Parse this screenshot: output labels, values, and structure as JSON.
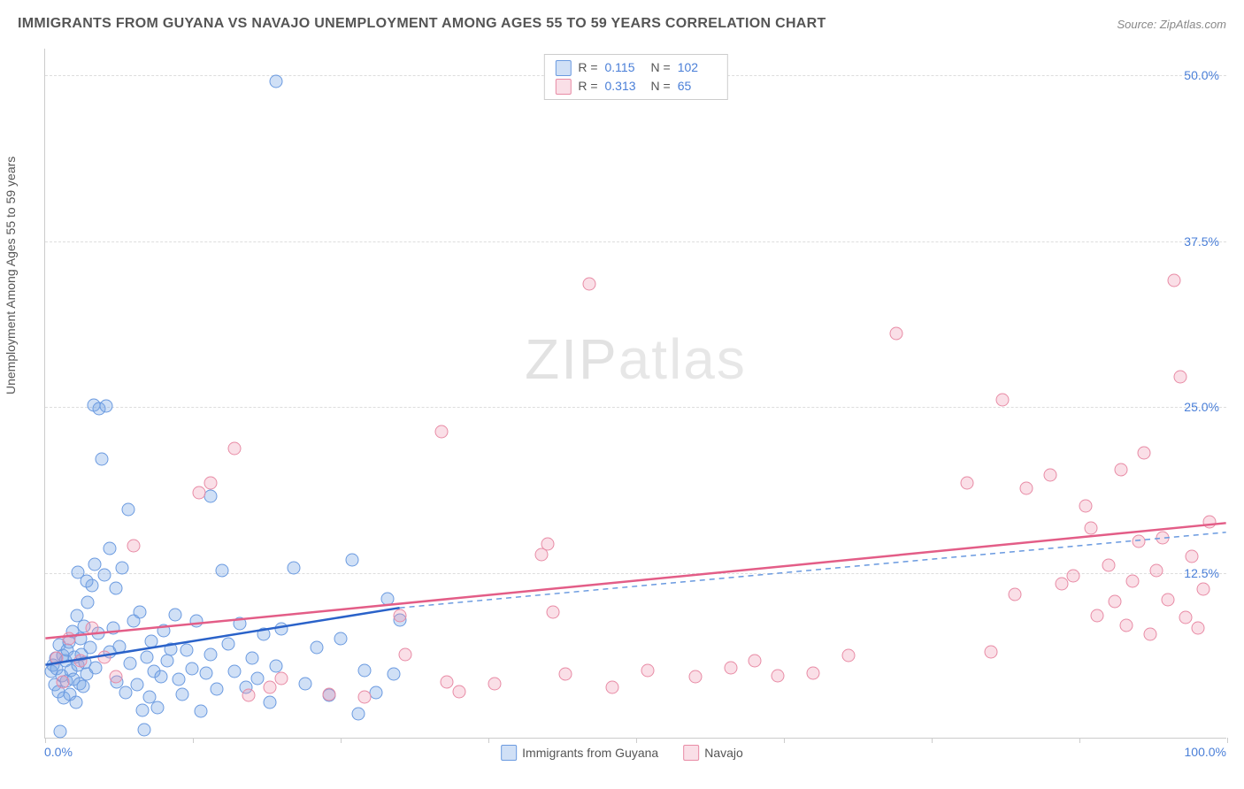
{
  "title": "IMMIGRANTS FROM GUYANA VS NAVAJO UNEMPLOYMENT AMONG AGES 55 TO 59 YEARS CORRELATION CHART",
  "source": "Source: ZipAtlas.com",
  "ylabel": "Unemployment Among Ages 55 to 59 years",
  "watermark_a": "ZIP",
  "watermark_b": "atlas",
  "chart": {
    "type": "scatter",
    "xlim": [
      0,
      100
    ],
    "ylim": [
      0,
      52
    ],
    "x_ticks": [
      0,
      12.5,
      25,
      37.5,
      50,
      62.5,
      75,
      87.5,
      100
    ],
    "y_ticks": [
      12.5,
      25.0,
      37.5,
      50.0
    ],
    "y_tick_labels": [
      "12.5%",
      "25.0%",
      "37.5%",
      "50.0%"
    ],
    "x_axis_min_label": "0.0%",
    "x_axis_max_label": "100.0%",
    "grid_color": "#dddddd",
    "axis_color": "#cccccc",
    "background_color": "#ffffff",
    "label_color": "#4a7fd8"
  },
  "series": [
    {
      "name": "Immigrants from Guyana",
      "color_fill": "rgba(120,165,230,0.35)",
      "color_stroke": "#6a9ae0",
      "line_color": "#2a62c9",
      "dash_color": "#6a9ae0",
      "R": "0.115",
      "N": "102",
      "trend": {
        "x1": 0,
        "y1": 5.5,
        "x2": 30,
        "y2": 9.8,
        "dash_x2": 100,
        "dash_y2": 15.5
      },
      "points": [
        [
          0.5,
          5
        ],
        [
          0.7,
          5.5
        ],
        [
          0.8,
          4
        ],
        [
          0.9,
          6
        ],
        [
          1,
          5.2
        ],
        [
          1.1,
          3.5
        ],
        [
          1.2,
          7
        ],
        [
          1.3,
          0.5
        ],
        [
          1.4,
          4.7
        ],
        [
          1.5,
          6.2
        ],
        [
          1.6,
          3
        ],
        [
          1.7,
          5.8
        ],
        [
          1.8,
          4.3
        ],
        [
          1.9,
          6.6
        ],
        [
          2,
          7.2
        ],
        [
          2.1,
          3.3
        ],
        [
          2.2,
          5.1
        ],
        [
          2.3,
          8
        ],
        [
          2.4,
          4.4
        ],
        [
          2.5,
          6.1
        ],
        [
          2.6,
          2.7
        ],
        [
          2.7,
          9.2
        ],
        [
          2.8,
          5.5
        ],
        [
          2.9,
          4.1
        ],
        [
          3,
          7.5
        ],
        [
          3.1,
          6.3
        ],
        [
          3.2,
          3.9
        ],
        [
          3.3,
          8.4
        ],
        [
          3.4,
          5.7
        ],
        [
          3.5,
          4.8
        ],
        [
          3.6,
          10.2
        ],
        [
          3.8,
          6.8
        ],
        [
          4,
          11.5
        ],
        [
          4.1,
          25.1
        ],
        [
          4.3,
          5.3
        ],
        [
          4.5,
          7.9
        ],
        [
          4.6,
          24.8
        ],
        [
          4.8,
          21
        ],
        [
          5,
          12.3
        ],
        [
          5.2,
          25
        ],
        [
          5.5,
          6.5
        ],
        [
          5.8,
          8.3
        ],
        [
          6,
          11.3
        ],
        [
          6.1,
          4.2
        ],
        [
          6.3,
          6.9
        ],
        [
          6.5,
          12.8
        ],
        [
          6.8,
          3.4
        ],
        [
          7,
          17.2
        ],
        [
          7.2,
          5.6
        ],
        [
          7.5,
          8.8
        ],
        [
          7.8,
          4
        ],
        [
          8,
          9.5
        ],
        [
          8.2,
          2.1
        ],
        [
          8.4,
          0.6
        ],
        [
          8.6,
          6.1
        ],
        [
          8.8,
          3.1
        ],
        [
          9,
          7.3
        ],
        [
          9.2,
          5
        ],
        [
          9.5,
          2.3
        ],
        [
          9.8,
          4.6
        ],
        [
          10,
          8.1
        ],
        [
          10.3,
          5.8
        ],
        [
          10.6,
          6.7
        ],
        [
          11,
          9.3
        ],
        [
          11.3,
          4.4
        ],
        [
          11.6,
          3.3
        ],
        [
          12,
          6.6
        ],
        [
          12.4,
          5.2
        ],
        [
          12.8,
          8.8
        ],
        [
          13.2,
          2
        ],
        [
          13.6,
          4.9
        ],
        [
          14,
          6.3
        ],
        [
          14.5,
          3.7
        ],
        [
          15,
          12.6
        ],
        [
          15.5,
          7.1
        ],
        [
          16,
          5
        ],
        [
          16.5,
          8.6
        ],
        [
          17,
          3.8
        ],
        [
          17.5,
          6
        ],
        [
          18,
          4.5
        ],
        [
          18.5,
          7.8
        ],
        [
          19,
          2.7
        ],
        [
          19.5,
          5.4
        ],
        [
          20,
          8.2
        ],
        [
          21,
          12.8
        ],
        [
          22,
          4.1
        ],
        [
          23,
          6.8
        ],
        [
          24,
          3.2
        ],
        [
          25,
          7.5
        ],
        [
          26,
          13.4
        ],
        [
          26.5,
          1.8
        ],
        [
          27,
          5.1
        ],
        [
          28,
          3.4
        ],
        [
          29,
          10.5
        ],
        [
          29.5,
          4.8
        ],
        [
          30,
          8.9
        ],
        [
          19.5,
          49.5
        ],
        [
          14,
          18.2
        ],
        [
          3.5,
          11.8
        ],
        [
          2.8,
          12.5
        ],
        [
          4.2,
          13.1
        ],
        [
          5.5,
          14.3
        ]
      ]
    },
    {
      "name": "Navajo",
      "color_fill": "rgba(240,150,175,0.30)",
      "color_stroke": "#e88ba5",
      "line_color": "#e35d87",
      "dash_color": "#e88ba5",
      "R": "0.313",
      "N": "65",
      "trend": {
        "x1": 0,
        "y1": 7.5,
        "x2": 100,
        "y2": 16.2,
        "dash_x2": 100,
        "dash_y2": 16.2
      },
      "points": [
        [
          1,
          6
        ],
        [
          1.5,
          4.2
        ],
        [
          2,
          7.5
        ],
        [
          3,
          5.8
        ],
        [
          4,
          8.3
        ],
        [
          5,
          6.1
        ],
        [
          6,
          4.6
        ],
        [
          7.5,
          14.5
        ],
        [
          13,
          18.5
        ],
        [
          14,
          19.2
        ],
        [
          16,
          21.8
        ],
        [
          17.2,
          3.2
        ],
        [
          19,
          3.8
        ],
        [
          20,
          4.5
        ],
        [
          24,
          3.3
        ],
        [
          27,
          3.1
        ],
        [
          30,
          9.2
        ],
        [
          30.5,
          6.3
        ],
        [
          33.5,
          23.1
        ],
        [
          34,
          4.2
        ],
        [
          35,
          3.5
        ],
        [
          38,
          4.1
        ],
        [
          42,
          13.8
        ],
        [
          42.5,
          14.6
        ],
        [
          43,
          9.5
        ],
        [
          44,
          4.8
        ],
        [
          46,
          34.2
        ],
        [
          48,
          3.8
        ],
        [
          51,
          5.1
        ],
        [
          55,
          4.6
        ],
        [
          58,
          5.3
        ],
        [
          60,
          5.8
        ],
        [
          62,
          4.7
        ],
        [
          65,
          4.9
        ],
        [
          68,
          6.2
        ],
        [
          72,
          30.5
        ],
        [
          78,
          19.2
        ],
        [
          80,
          6.5
        ],
        [
          81,
          25.5
        ],
        [
          82,
          10.8
        ],
        [
          83,
          18.8
        ],
        [
          85,
          19.8
        ],
        [
          86,
          11.6
        ],
        [
          87,
          12.2
        ],
        [
          88,
          17.5
        ],
        [
          88.5,
          15.8
        ],
        [
          89,
          9.2
        ],
        [
          90,
          13
        ],
        [
          90.5,
          10.3
        ],
        [
          91,
          20.2
        ],
        [
          91.5,
          8.5
        ],
        [
          92,
          11.8
        ],
        [
          92.5,
          14.8
        ],
        [
          93,
          21.5
        ],
        [
          93.5,
          7.8
        ],
        [
          94,
          12.6
        ],
        [
          94.5,
          15.1
        ],
        [
          95,
          10.4
        ],
        [
          95.5,
          34.5
        ],
        [
          96,
          27.2
        ],
        [
          96.5,
          9.1
        ],
        [
          97,
          13.7
        ],
        [
          97.5,
          8.3
        ],
        [
          98,
          11.2
        ],
        [
          98.5,
          16.3
        ]
      ]
    }
  ],
  "bottom_legend": {
    "series1_label": "Immigrants from Guyana",
    "series2_label": "Navajo"
  },
  "top_legend_labels": {
    "R": "R  =",
    "N": "N  ="
  }
}
